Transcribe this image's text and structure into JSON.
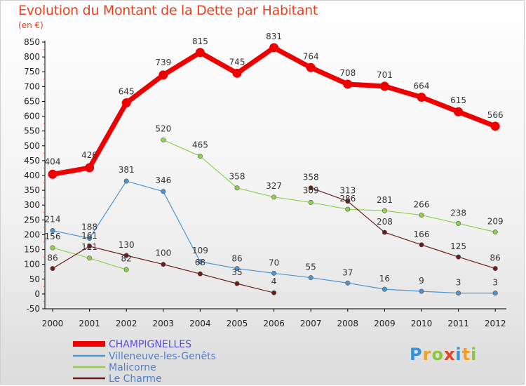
{
  "header": {
    "title": "Evolution du Montant de la Dette par Habitant",
    "unit": "(en €)"
  },
  "logo": {
    "text": "Proxiti",
    "letters": [
      "P",
      "r",
      "o",
      "x",
      "i",
      "t",
      "i"
    ],
    "letter_colors": [
      "#3a8fd6",
      "#f0a020",
      "#8cc63f",
      "#e8421f",
      "#3a8fd6",
      "#f0a020",
      "#8cc63f"
    ]
  },
  "chart_data": {
    "type": "line",
    "title": "Evolution du Montant de la Dette par Habitant",
    "subtitle": "(en €)",
    "xlabel": "",
    "ylabel": "",
    "categories": [
      "2000",
      "2001",
      "2002",
      "2003",
      "2004",
      "2005",
      "2006",
      "2007",
      "2008",
      "2009",
      "2010",
      "2011",
      "2012"
    ],
    "ylim": [
      -50,
      850
    ],
    "yticks": [
      -50,
      0,
      50,
      100,
      150,
      200,
      250,
      300,
      350,
      400,
      450,
      500,
      550,
      600,
      650,
      700,
      750,
      800,
      850
    ],
    "grid": false,
    "legend_position": "bottom-left",
    "series": [
      {
        "name": "CHAMPIGNELLES",
        "color": "#ee0000",
        "segments": [
          [
            0,
            12
          ]
        ],
        "values": [
          404,
          426,
          645,
          739,
          815,
          745,
          831,
          764,
          708,
          701,
          664,
          615,
          566
        ]
      },
      {
        "name": "Villeneuve-les-Genêts",
        "color": "#4f94cd",
        "segments": [
          [
            0,
            12
          ]
        ],
        "values": [
          214,
          188,
          381,
          346,
          109,
          86,
          70,
          55,
          37,
          16,
          9,
          3,
          3
        ],
        "labels": [
          "214",
          "188",
          "381",
          "346",
          "109",
          "86",
          "70",
          "55",
          "37",
          "16",
          "9",
          "3",
          "3"
        ]
      },
      {
        "name": "Malicorne",
        "color": "#8fd14f",
        "segments": [
          [
            0,
            2
          ],
          [
            3,
            12
          ]
        ],
        "values": [
          156,
          121,
          82,
          520,
          465,
          358,
          327,
          309,
          286,
          281,
          266,
          238,
          209
        ],
        "labels": [
          "156",
          "121",
          "82",
          "520",
          "465",
          "358",
          "327",
          "309",
          "286",
          "281",
          "266",
          "238",
          "209"
        ]
      },
      {
        "name": "Le Charme",
        "color": "#6b1d1d",
        "segments": [
          [
            0,
            6
          ],
          [
            7,
            12
          ]
        ],
        "values": [
          86,
          161,
          130,
          100,
          68,
          35,
          4,
          358,
          313,
          208,
          166,
          125,
          86
        ],
        "labels": [
          "86",
          "161",
          "130",
          "100",
          "68",
          "35",
          "4",
          "358",
          "313",
          "208",
          "166",
          "125",
          "86"
        ]
      }
    ]
  }
}
